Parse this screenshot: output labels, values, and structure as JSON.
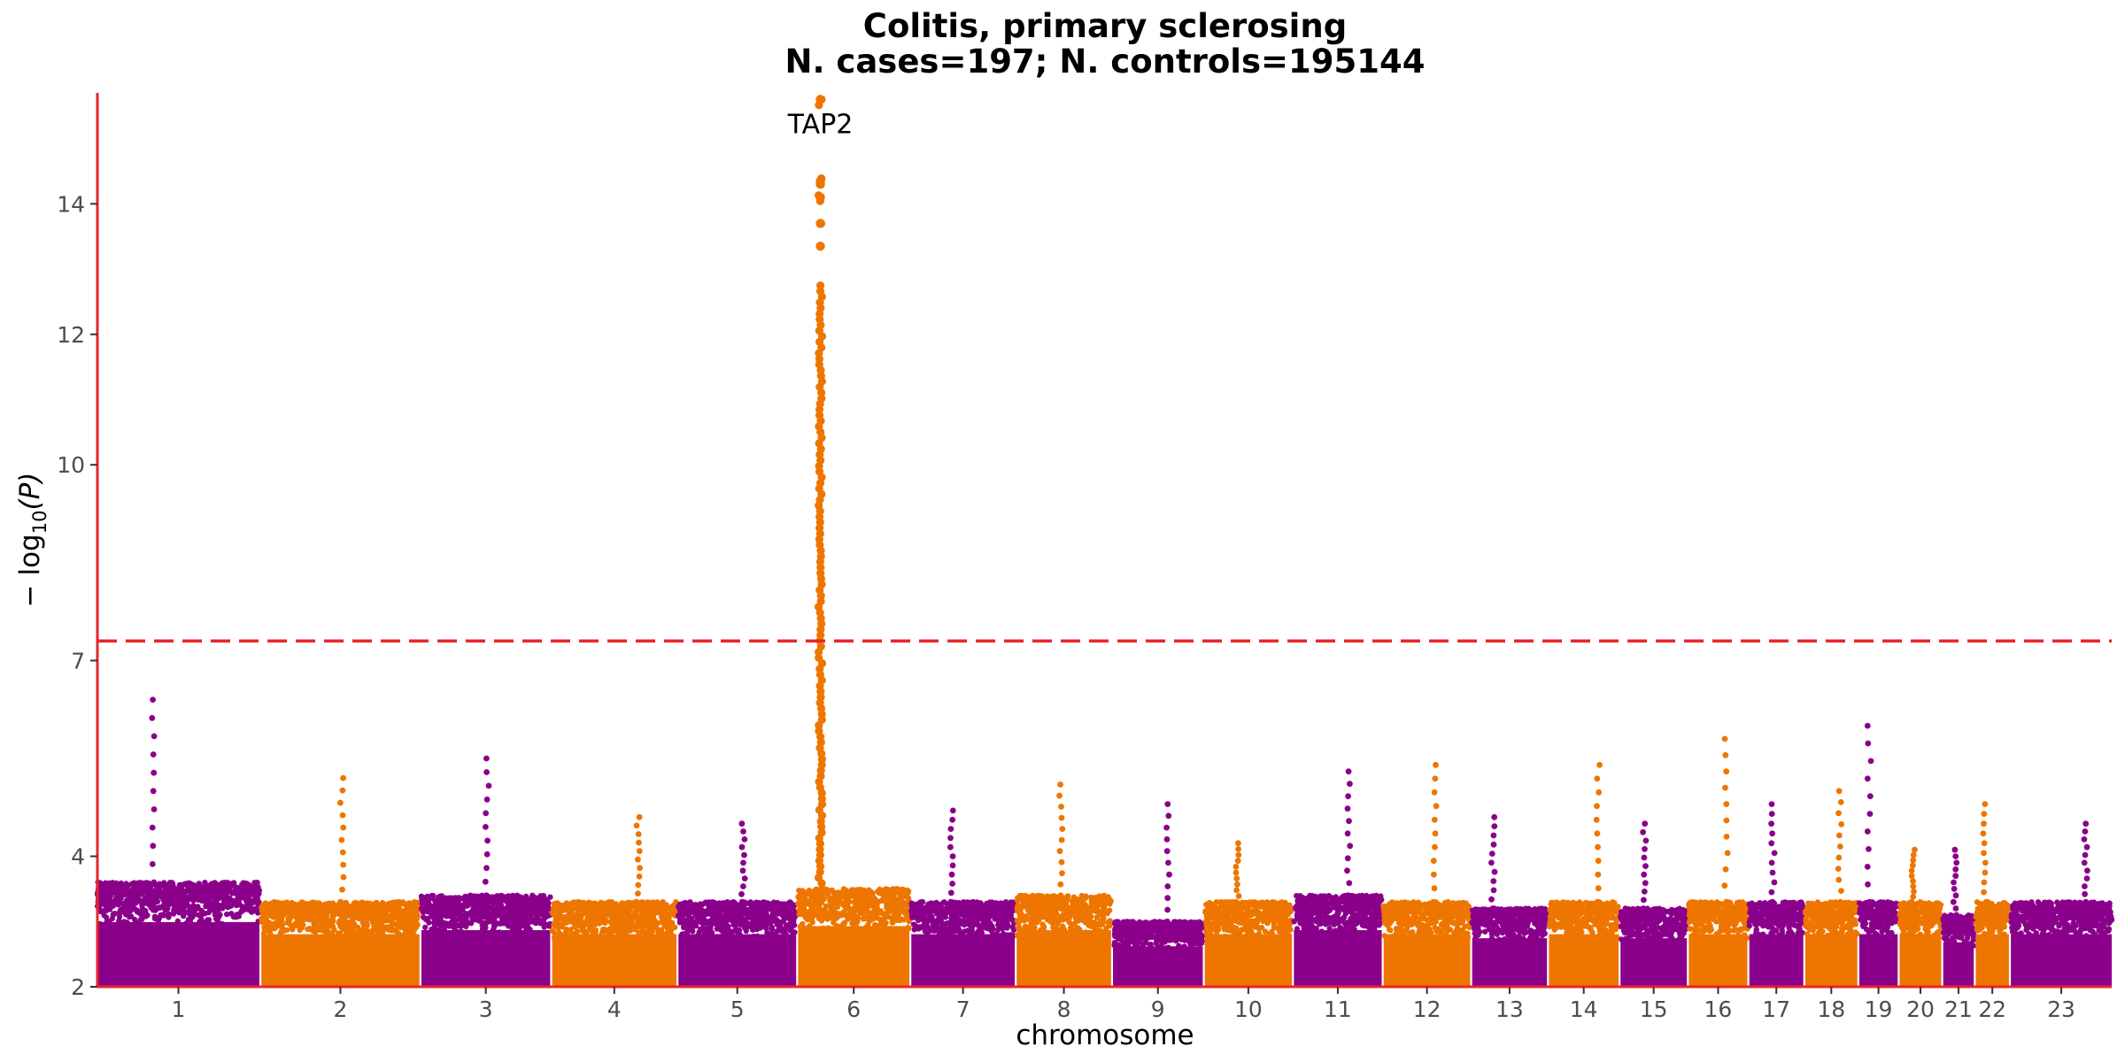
{
  "chart_data": {
    "type": "scatter",
    "subtype": "manhattan",
    "title": "Colitis, primary sclerosing",
    "subtitle": "N. cases=197; N. controls=195144",
    "xlabel": "chromosome",
    "ylabel_main": "− log",
    "ylabel_sub": "10",
    "ylabel_tail": "(P)",
    "ylim": [
      2,
      15.7
    ],
    "yticks": [
      2,
      4,
      7,
      10,
      12,
      14
    ],
    "grid": false,
    "legend": "none",
    "significance_threshold": 7.3,
    "colors": {
      "odd": "#8b008b",
      "even": "#ee7600",
      "threshold": "#e8262a",
      "axis": "#e8262a"
    },
    "chromosomes": [
      {
        "label": "1",
        "size": 249,
        "peak": 6.4,
        "base": 3.6
      },
      {
        "label": "2",
        "size": 243,
        "peak": 5.2,
        "base": 3.3
      },
      {
        "label": "3",
        "size": 198,
        "peak": 5.5,
        "base": 3.4
      },
      {
        "label": "4",
        "size": 191,
        "peak": 4.6,
        "base": 3.3
      },
      {
        "label": "5",
        "size": 181,
        "peak": 4.5,
        "base": 3.3
      },
      {
        "label": "6",
        "size": 171,
        "peak": 15.6,
        "base": 3.5
      },
      {
        "label": "7",
        "size": 159,
        "peak": 4.7,
        "base": 3.3
      },
      {
        "label": "8",
        "size": 145,
        "peak": 5.1,
        "base": 3.4
      },
      {
        "label": "9",
        "size": 138,
        "peak": 4.8,
        "base": 3.0
      },
      {
        "label": "10",
        "size": 134,
        "peak": 4.2,
        "base": 3.3
      },
      {
        "label": "11",
        "size": 135,
        "peak": 5.3,
        "base": 3.4
      },
      {
        "label": "12",
        "size": 133,
        "peak": 5.4,
        "base": 3.3
      },
      {
        "label": "13",
        "size": 115,
        "peak": 4.6,
        "base": 3.2
      },
      {
        "label": "14",
        "size": 107,
        "peak": 5.4,
        "base": 3.3
      },
      {
        "label": "15",
        "size": 102,
        "peak": 4.5,
        "base": 3.2
      },
      {
        "label": "16",
        "size": 90,
        "peak": 5.8,
        "base": 3.3
      },
      {
        "label": "17",
        "size": 83,
        "peak": 4.8,
        "base": 3.3
      },
      {
        "label": "18",
        "size": 80,
        "peak": 5.0,
        "base": 3.3
      },
      {
        "label": "19",
        "size": 59,
        "peak": 6.0,
        "base": 3.3
      },
      {
        "label": "20",
        "size": 64,
        "peak": 4.1,
        "base": 3.3
      },
      {
        "label": "21",
        "size": 47,
        "peak": 4.1,
        "base": 3.1
      },
      {
        "label": "22",
        "size": 51,
        "peak": 4.8,
        "base": 3.3
      },
      {
        "label": "23",
        "size": 155,
        "peak": 4.5,
        "base": 3.3
      }
    ],
    "annotations": [
      {
        "label": "TAP2",
        "chromosome": "6",
        "position": 0.2,
        "y": 15.6
      }
    ]
  }
}
